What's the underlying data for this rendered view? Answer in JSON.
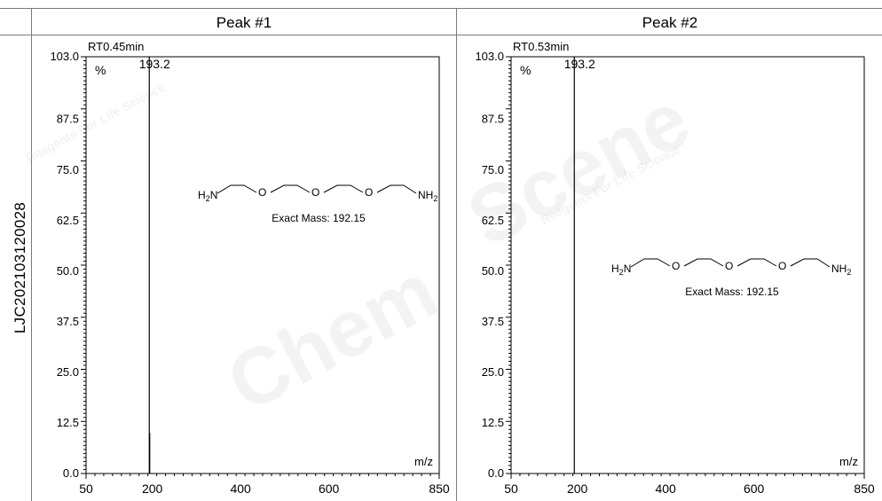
{
  "header": {
    "peak1_title": "Peak #1",
    "peak2_title": "Peak #2"
  },
  "sample": {
    "label": "LJC202103120028"
  },
  "watermark": {
    "brand": "ChemScene",
    "tagline": "Reagents For Life Science"
  },
  "chart_data": [
    {
      "type": "bar",
      "title": "Peak #1",
      "retention_time": "RT0.45min",
      "y_unit_label": "%",
      "xlabel": "m/z",
      "xlim": [
        50,
        850
      ],
      "ylim": [
        0,
        103
      ],
      "x_ticks": [
        "50",
        "200",
        "400",
        "600",
        "850"
      ],
      "y_ticks": [
        "0.0",
        "12.5",
        "25.0",
        "37.5",
        "50.0",
        "62.5",
        "75.0",
        "87.5",
        "103.0"
      ],
      "peaks": [
        {
          "mz": 193.2,
          "intensity": 103.0,
          "label": "193.2"
        },
        {
          "mz": 194.2,
          "intensity": 10.0,
          "label": ""
        }
      ],
      "structure": {
        "left_group": "H2N",
        "right_group": "NH2",
        "oxygens": [
          "O",
          "O",
          "O"
        ],
        "exact_mass_text": "Exact Mass: 192.15"
      }
    },
    {
      "type": "bar",
      "title": "Peak #2",
      "retention_time": "RT0.53min",
      "y_unit_label": "%",
      "xlabel": "m/z",
      "xlim": [
        50,
        850
      ],
      "ylim": [
        0,
        103
      ],
      "x_ticks": [
        "50",
        "200",
        "400",
        "600",
        "850"
      ],
      "y_ticks": [
        "0.0",
        "12.5",
        "25.0",
        "37.5",
        "50.0",
        "62.5",
        "75.0",
        "87.5",
        "103.0"
      ],
      "peaks": [
        {
          "mz": 193.2,
          "intensity": 103.0,
          "label": "193.2"
        }
      ],
      "structure": {
        "left_group": "H2N",
        "right_group": "NH2",
        "oxygens": [
          "O",
          "O",
          "O"
        ],
        "exact_mass_text": "Exact Mass: 192.15"
      }
    }
  ]
}
